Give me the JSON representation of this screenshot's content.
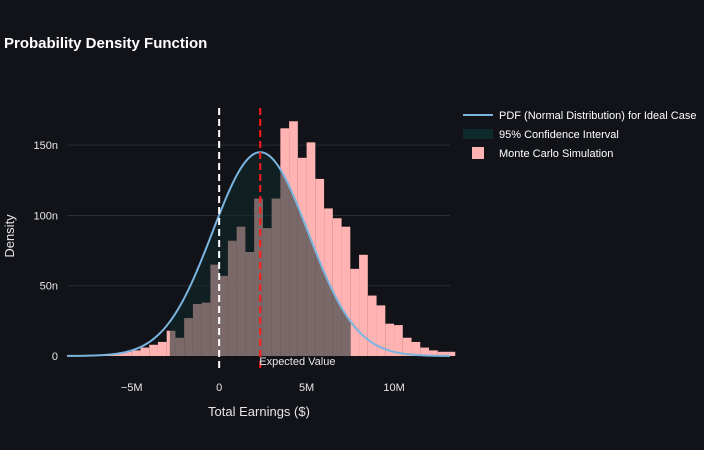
{
  "chart_data": {
    "type": "bar",
    "title": "Probability Density Function",
    "xlabel": "Total Earnings ($)",
    "ylabel": "Density",
    "xlim": [
      -8700000,
      13200000
    ],
    "ylim": [
      0,
      180
    ],
    "x_ticks": [
      {
        "value": -5000000,
        "label": "−5M"
      },
      {
        "value": 0,
        "label": "0"
      },
      {
        "value": 5000000,
        "label": "5M"
      },
      {
        "value": 10000000,
        "label": "10M"
      }
    ],
    "y_ticks": [
      {
        "value": 0,
        "label": "0"
      },
      {
        "value": 50,
        "label": "50n"
      },
      {
        "value": 100,
        "label": "100n"
      },
      {
        "value": 150,
        "label": "150n"
      }
    ],
    "bin_width": 500000,
    "bins_start": -7000000,
    "histogram_values": [
      1,
      1,
      2,
      3,
      4,
      6,
      8,
      10,
      18,
      13,
      27,
      37,
      38,
      65,
      57,
      82,
      92,
      74,
      112,
      91,
      112,
      162,
      167,
      141,
      152,
      126,
      105,
      98,
      92,
      62,
      72,
      43,
      36,
      23,
      22,
      13,
      10,
      6,
      4,
      3,
      3
    ],
    "pdf": {
      "mean": 2350000,
      "std": 2740000,
      "peak_density": 145
    },
    "confidence_interval": [
      -2820000,
      7520000
    ],
    "expected_value": 2350000,
    "zero_line": 0,
    "annotation": "Expected Value",
    "legend": [
      {
        "label": "PDF (Normal Distribution) for Ideal Case",
        "color": "#7ab4df",
        "kind": "line"
      },
      {
        "label": "95% Confidence Interval",
        "color": "#0e2a2a",
        "kind": "area"
      },
      {
        "label": "Monte Carlo Simulation",
        "color": "#ffb3b3",
        "kind": "bar"
      }
    ],
    "colors": {
      "background": "#111319",
      "grid": "#2a2d35",
      "bar": "#ffb3b3",
      "ci_fill": "#0e2a2a",
      "pdf_line": "#7ab4df",
      "expected_line": "#ff1a1a",
      "zero_line": "#ffffff"
    }
  }
}
